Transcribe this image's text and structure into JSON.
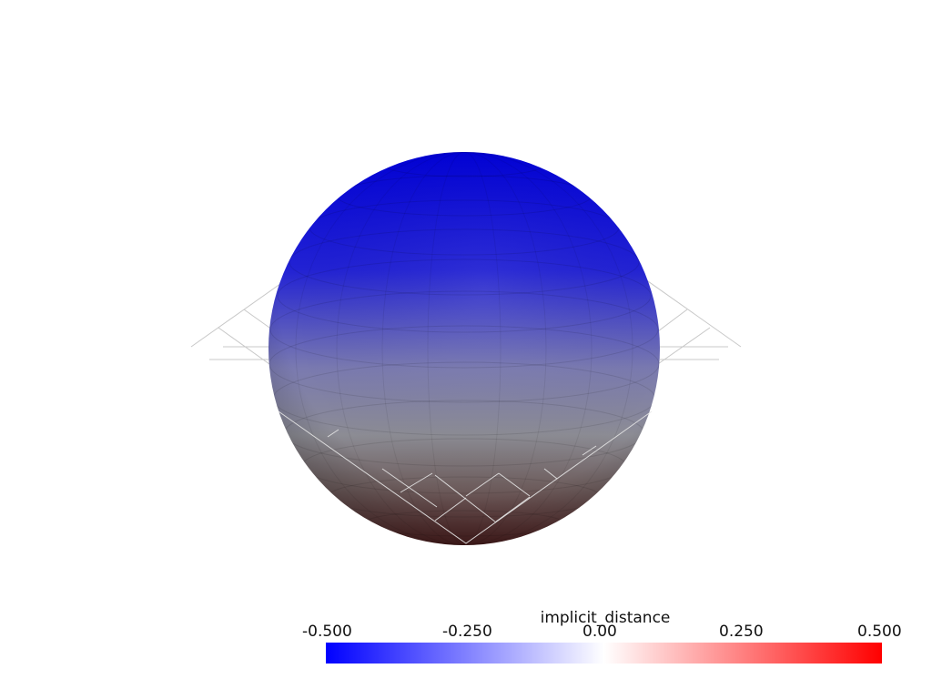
{
  "scalar_bar": {
    "title": "implicit_distance",
    "ticks": [
      "-0.500",
      "-0.250",
      "0.00",
      "0.250",
      "0.500"
    ],
    "colormap": {
      "low": "#0000ff",
      "mid": "#ffffff",
      "high": "#ff0000"
    },
    "range": [
      -0.5,
      0.5
    ]
  },
  "mesh": {
    "type": "sphere",
    "colors": {
      "top": "#0000d0",
      "equator": "#8a8aa8",
      "bottom": "#4a2020"
    }
  },
  "plane": {
    "style": "wireframe",
    "color": "#c8c8c8"
  }
}
